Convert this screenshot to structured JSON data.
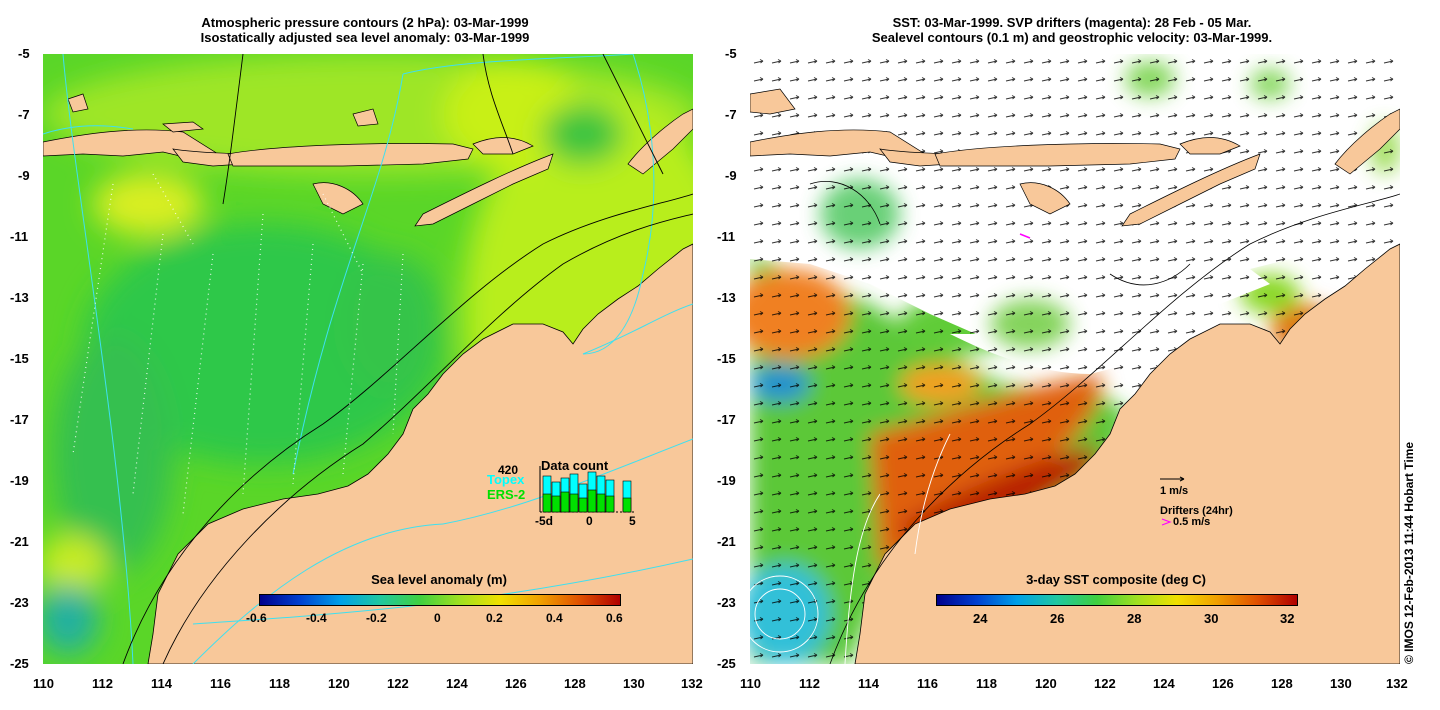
{
  "left_panel": {
    "title_line1": "Atmospheric pressure contours (2 hPa): 03-Mar-1999",
    "title_line2": "Isostatically adjusted sea level anomaly: 03-Mar-1999",
    "colorbar": {
      "label": "Sea level anomaly (m)",
      "ticks": [
        "-0.6",
        "-0.4",
        "-0.2",
        "0",
        "0.2",
        "0.4",
        "0.6"
      ]
    },
    "data_count": {
      "label": "Data count",
      "max_value": "420",
      "topex_label": "Topex",
      "ers2_label": "ERS-2",
      "axis_ticks": [
        "-5d",
        "0",
        "5"
      ],
      "topex_color": "#00ffff",
      "ers2_color": "#00e000"
    }
  },
  "right_panel": {
    "title_line1": "SST: 03-Mar-1999. SVP drifters (magenta): 28 Feb - 05 Mar.",
    "title_line2": "Sealevel contours (0.1 m) and geostrophic velocity: 03-Mar-1999.",
    "colorbar": {
      "label": "3-day SST composite (deg C)",
      "ticks": [
        "24",
        "26",
        "28",
        "30",
        "32"
      ]
    },
    "velocity_scale_label": "1 m/s",
    "drifters_label": "Drifters (24hr)",
    "drifter_speed_label": "0.5 m/s",
    "drifter_color": "#ff00ff"
  },
  "axes": {
    "x_ticks": [
      "110",
      "112",
      "114",
      "116",
      "118",
      "120",
      "122",
      "124",
      "126",
      "128",
      "130",
      "132"
    ],
    "y_ticks": [
      "-5",
      "-7",
      "-9",
      "-11",
      "-13",
      "-15",
      "-17",
      "-19",
      "-21",
      "-23",
      "-25"
    ]
  },
  "colors": {
    "land": "#f8c89a",
    "ocean_base": "#5ad628",
    "no_data": "#ffffff"
  },
  "copyright": "© IMOS 12-Feb-2013 11:44 Hobart Time"
}
